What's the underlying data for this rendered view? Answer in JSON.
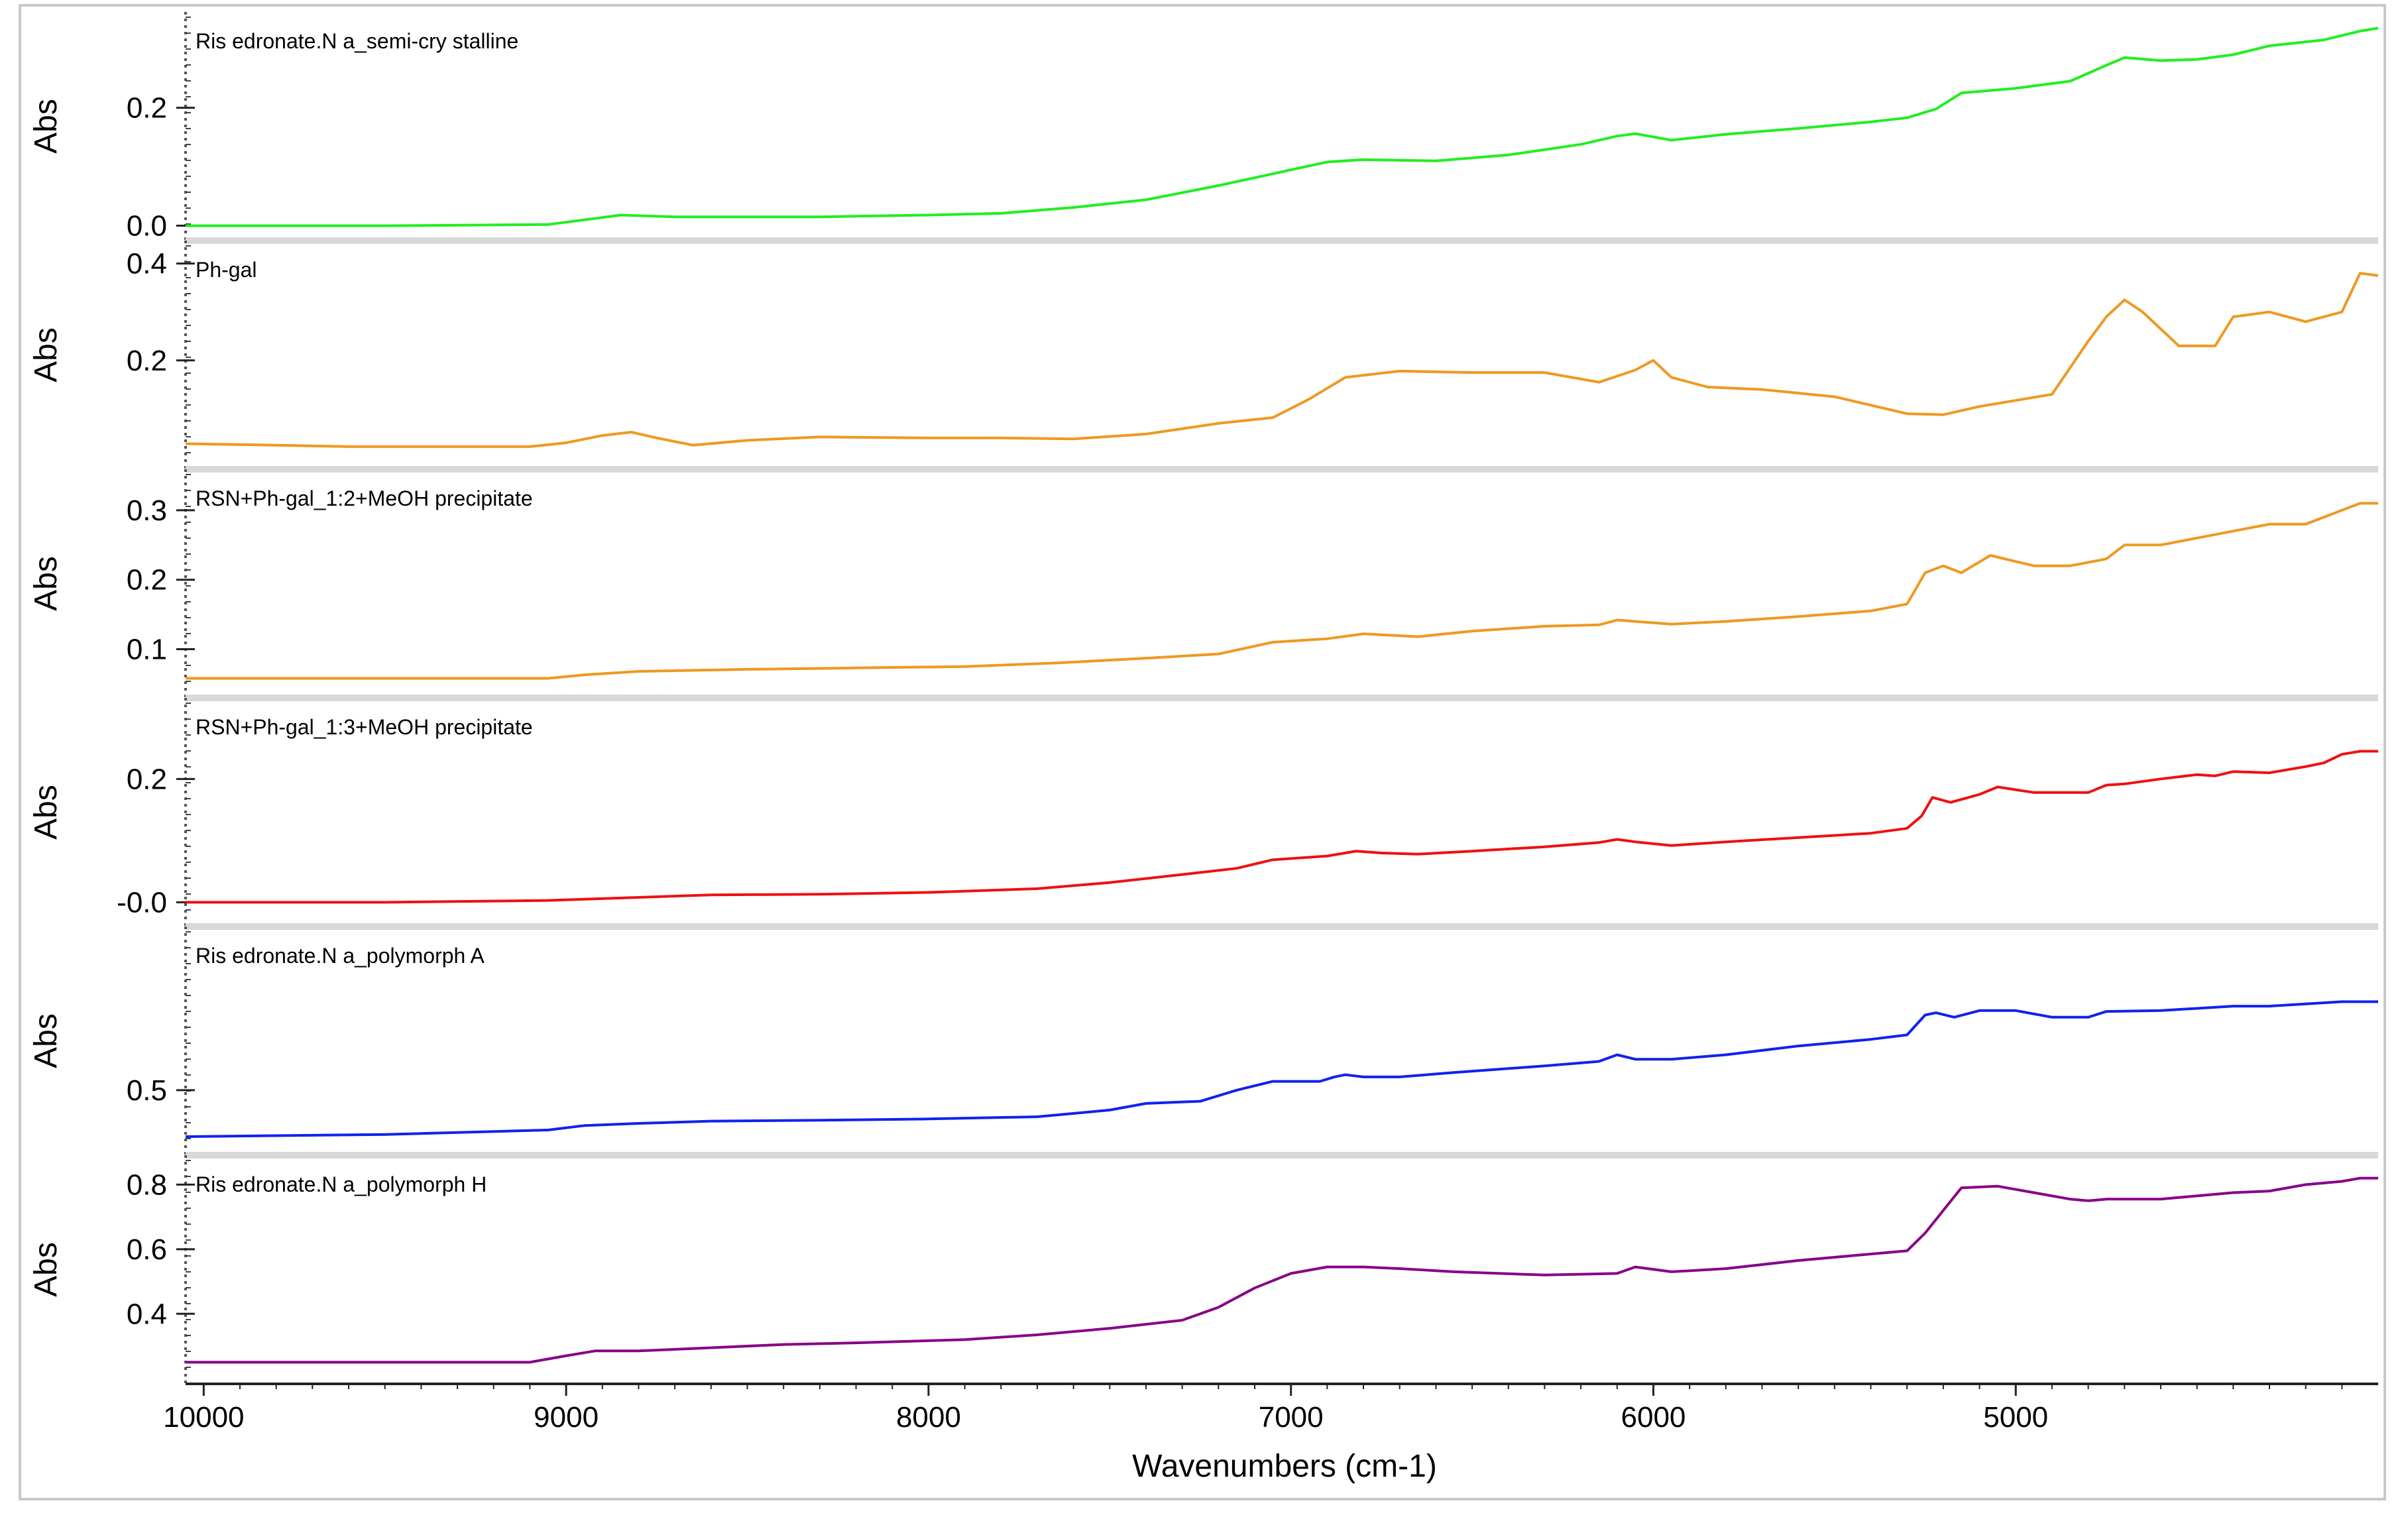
{
  "chart_data": {
    "type": "line",
    "xlabel": "Wavenumbers (cm-1)",
    "x_ticks": [
      10000,
      9000,
      8000,
      7000,
      6000,
      5000
    ],
    "xlim": [
      10050,
      4000
    ],
    "grid": false,
    "legend": "none",
    "panels": [
      {
        "name": "Ris edronate.N a_semi-cry stalline",
        "ylabel": "Abs",
        "color": "#22ee22",
        "ylim": [
          -0.005,
          0.34
        ],
        "yticks": [
          {
            "v": 0.2,
            "label": "0.2"
          },
          {
            "v": 0.0,
            "label": "0.0"
          }
        ],
        "x": [
          10050,
          9500,
          9050,
          8950,
          8850,
          8700,
          8500,
          8300,
          8000,
          7800,
          7600,
          7400,
          7200,
          7050,
          6900,
          6800,
          6600,
          6400,
          6200,
          6100,
          6050,
          5950,
          5800,
          5600,
          5400,
          5300,
          5220,
          5150,
          5000,
          4850,
          4750,
          4700,
          4600,
          4500,
          4400,
          4300,
          4150,
          4050,
          4000
        ],
        "y": [
          0.0,
          0.0,
          0.002,
          0.01,
          0.018,
          0.015,
          0.015,
          0.015,
          0.018,
          0.021,
          0.031,
          0.044,
          0.068,
          0.088,
          0.108,
          0.112,
          0.11,
          0.12,
          0.138,
          0.152,
          0.156,
          0.145,
          0.155,
          0.165,
          0.176,
          0.183,
          0.198,
          0.225,
          0.233,
          0.245,
          0.272,
          0.285,
          0.28,
          0.282,
          0.29,
          0.305,
          0.315,
          0.33,
          0.335
        ]
      },
      {
        "name": "Ph-gal",
        "ylabel": "Abs",
        "color": "#ee9922",
        "ylim": [
          0.0,
          0.42
        ],
        "yticks": [
          {
            "v": 0.4,
            "label": "0.4"
          },
          {
            "v": 0.2,
            "label": "0.2"
          }
        ],
        "x": [
          10050,
          9800,
          9600,
          9300,
          9100,
          9000,
          8900,
          8820,
          8750,
          8650,
          8500,
          8300,
          8000,
          7800,
          7600,
          7400,
          7200,
          7050,
          6950,
          6850,
          6700,
          6500,
          6300,
          6150,
          6050,
          6000,
          5950,
          5850,
          5700,
          5500,
          5300,
          5200,
          5100,
          4900,
          4800,
          4750,
          4700,
          4650,
          4550,
          4450,
          4400,
          4300,
          4200,
          4100,
          4050,
          4000
        ],
        "y": [
          0.028,
          0.025,
          0.022,
          0.022,
          0.022,
          0.03,
          0.045,
          0.052,
          0.04,
          0.025,
          0.035,
          0.042,
          0.04,
          0.04,
          0.038,
          0.048,
          0.07,
          0.082,
          0.12,
          0.165,
          0.178,
          0.175,
          0.175,
          0.155,
          0.18,
          0.2,
          0.165,
          0.145,
          0.14,
          0.125,
          0.09,
          0.088,
          0.105,
          0.13,
          0.24,
          0.29,
          0.325,
          0.3,
          0.23,
          0.23,
          0.29,
          0.3,
          0.28,
          0.3,
          0.38,
          0.375
        ]
      },
      {
        "name": "RSN+Ph-gal_1:2+MeOH precipitate",
        "ylabel": "Abs",
        "color": "#ee9922",
        "ylim": [
          0.047,
          0.34
        ],
        "yticks": [
          {
            "v": 0.3,
            "label": "0.3"
          },
          {
            "v": 0.2,
            "label": "0.2"
          },
          {
            "v": 0.1,
            "label": "0.1"
          }
        ],
        "x": [
          10050,
          9500,
          9050,
          8950,
          8800,
          8500,
          8200,
          7900,
          7650,
          7400,
          7200,
          7050,
          6900,
          6800,
          6650,
          6500,
          6300,
          6150,
          6100,
          6050,
          5950,
          5800,
          5600,
          5400,
          5300,
          5250,
          5200,
          5150,
          5070,
          4950,
          4850,
          4750,
          4700,
          4600,
          4500,
          4400,
          4300,
          4200,
          4100,
          4050,
          4000
        ],
        "y": [
          0.058,
          0.058,
          0.058,
          0.063,
          0.068,
          0.071,
          0.073,
          0.075,
          0.08,
          0.087,
          0.093,
          0.11,
          0.115,
          0.122,
          0.118,
          0.126,
          0.133,
          0.135,
          0.142,
          0.14,
          0.136,
          0.14,
          0.147,
          0.155,
          0.165,
          0.21,
          0.22,
          0.21,
          0.235,
          0.22,
          0.22,
          0.23,
          0.25,
          0.25,
          0.26,
          0.27,
          0.28,
          0.28,
          0.3,
          0.31,
          0.31
        ]
      },
      {
        "name": "RSN+Ph-gal_1:3+MeOH precipitate",
        "ylabel": "Abs",
        "color": "#ee1111",
        "ylim": [
          -0.02,
          0.31
        ],
        "yticks": [
          {
            "v": 0.2,
            "label": "0.2"
          },
          {
            "v": 0.0,
            "label": "-0.0"
          }
        ],
        "x": [
          10050,
          9500,
          9050,
          8950,
          8800,
          8600,
          8300,
          8000,
          7700,
          7500,
          7300,
          7150,
          7050,
          6900,
          6820,
          6750,
          6650,
          6500,
          6300,
          6150,
          6100,
          6050,
          5950,
          5800,
          5600,
          5400,
          5300,
          5260,
          5230,
          5180,
          5100,
          5050,
          4950,
          4800,
          4750,
          4700,
          4600,
          4500,
          4450,
          4400,
          4300,
          4200,
          4150,
          4100,
          4050,
          4000
        ],
        "y": [
          0.0,
          0.0,
          0.003,
          0.005,
          0.008,
          0.012,
          0.013,
          0.016,
          0.022,
          0.032,
          0.045,
          0.055,
          0.069,
          0.075,
          0.083,
          0.08,
          0.078,
          0.083,
          0.09,
          0.097,
          0.102,
          0.098,
          0.092,
          0.098,
          0.105,
          0.112,
          0.12,
          0.14,
          0.17,
          0.162,
          0.175,
          0.187,
          0.178,
          0.178,
          0.19,
          0.192,
          0.2,
          0.207,
          0.205,
          0.212,
          0.21,
          0.22,
          0.226,
          0.24,
          0.245,
          0.245
        ]
      },
      {
        "name": "Ris edronate.N a_polymorph A",
        "ylabel": "Abs",
        "color": "#1122ee",
        "ylim": [
          0.38,
          0.84
        ],
        "yticks": [
          {
            "v": 0.5,
            "label": "0.5"
          }
        ],
        "x": [
          10050,
          9500,
          9050,
          8950,
          8800,
          8600,
          8300,
          8000,
          7700,
          7500,
          7400,
          7250,
          7150,
          7050,
          6920,
          6880,
          6850,
          6800,
          6700,
          6550,
          6300,
          6150,
          6100,
          6050,
          5950,
          5800,
          5600,
          5400,
          5300,
          5250,
          5220,
          5170,
          5100,
          5000,
          4900,
          4800,
          4750,
          4600,
          4400,
          4300,
          4200,
          4100,
          4000
        ],
        "y": [
          0.395,
          0.4,
          0.41,
          0.42,
          0.425,
          0.43,
          0.432,
          0.435,
          0.44,
          0.455,
          0.47,
          0.475,
          0.5,
          0.52,
          0.52,
          0.53,
          0.535,
          0.53,
          0.53,
          0.54,
          0.555,
          0.565,
          0.58,
          0.57,
          0.57,
          0.58,
          0.6,
          0.615,
          0.625,
          0.67,
          0.675,
          0.665,
          0.68,
          0.68,
          0.665,
          0.665,
          0.678,
          0.68,
          0.69,
          0.69,
          0.695,
          0.7,
          0.7
        ]
      },
      {
        "name": "Ris edronate.N a_polymorph H",
        "ylabel": "Abs",
        "color": "#880088",
        "ylim": [
          0.22,
          0.85
        ],
        "yticks": [
          {
            "v": 0.8,
            "label": "0.8"
          },
          {
            "v": 0.6,
            "label": "0.6"
          },
          {
            "v": 0.4,
            "label": "0.4"
          }
        ],
        "x": [
          10050,
          9500,
          9100,
          9000,
          8920,
          8800,
          8600,
          8400,
          8200,
          7900,
          7700,
          7500,
          7300,
          7200,
          7100,
          7000,
          6900,
          6800,
          6700,
          6550,
          6300,
          6100,
          6050,
          5950,
          5800,
          5600,
          5400,
          5300,
          5250,
          5200,
          5150,
          5050,
          4950,
          4850,
          4800,
          4750,
          4700,
          4600,
          4500,
          4400,
          4300,
          4200,
          4100,
          4050,
          4000
        ],
        "y": [
          0.25,
          0.25,
          0.25,
          0.27,
          0.285,
          0.285,
          0.295,
          0.305,
          0.31,
          0.32,
          0.335,
          0.355,
          0.38,
          0.42,
          0.48,
          0.525,
          0.545,
          0.545,
          0.54,
          0.53,
          0.52,
          0.525,
          0.545,
          0.53,
          0.54,
          0.565,
          0.585,
          0.595,
          0.65,
          0.72,
          0.79,
          0.795,
          0.775,
          0.755,
          0.75,
          0.755,
          0.755,
          0.755,
          0.765,
          0.775,
          0.78,
          0.8,
          0.81,
          0.82,
          0.82
        ]
      }
    ]
  }
}
